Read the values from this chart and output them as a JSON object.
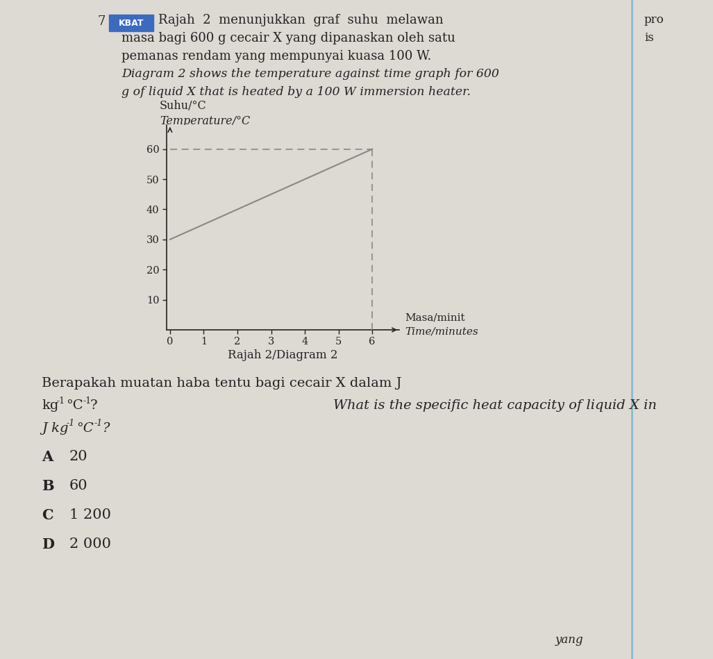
{
  "background_color": "#ddd9d3",
  "header_num": "7",
  "header_line1_normal": "Rajah  2  menunjukkan  graf  suhu  melawan",
  "header_line2_normal": "masa bagi 600 g cecair X yang dipanaskan oleh satu",
  "header_line3_normal": "pemanas rendam yang mempunyai kuasa 100 W.",
  "header_line4_italic": "Diagram 2 shows the temperature against time graph for 600",
  "header_line5_italic": "g of liquid X that is heated by a 100 W immersion heater.",
  "kbat_label": "KBAT",
  "right_col1": "pro",
  "right_col2": "is",
  "ylabel_line1": "Suhu/°C",
  "ylabel_line2": "Temperature/°C",
  "xlabel_line1": "Masa/minit",
  "xlabel_line2": "Time/minutes",
  "graph_caption": "Rajah 2/Diagram 2",
  "yticks": [
    10,
    20,
    30,
    40,
    50,
    60
  ],
  "xticks": [
    0,
    1,
    2,
    3,
    4,
    5,
    6
  ],
  "line_x": [
    0,
    6
  ],
  "line_y": [
    30,
    60
  ],
  "dashed_h_y": 60,
  "dashed_v_x": 6,
  "xlim": [
    -0.1,
    6.8
  ],
  "ylim": [
    0,
    68
  ],
  "question_line1": "Berapakah muatan haba tentu bagi cecair X dalam J",
  "question_line2_ms": "kg",
  "question_line2_ms_sup": "-1",
  "question_line2_ms2": " °C",
  "question_line2_ms_sup2": "-1",
  "question_line2_ms3": "?",
  "question_line2_en": "What is the specific heat capacity of liquid X in",
  "question_line3_en": "J kg",
  "question_line3_en_sup": "-1",
  "question_line3_en2": " °C",
  "question_line3_en_sup2": "-1",
  "question_line3_en3": "?",
  "option_A_letter": "A",
  "option_A_val": "20",
  "option_B_letter": "B",
  "option_B_val": "60",
  "option_C_letter": "C",
  "option_C_val": "1 200",
  "option_D_letter": "D",
  "option_D_val": "2 000",
  "bottom_text": "yang",
  "line_color": "#888888",
  "dashed_color": "#888888",
  "axis_color": "#222222",
  "text_color": "#222222",
  "kbat_bg": "#3a6bbf",
  "right_line_color": "#88bbcc"
}
